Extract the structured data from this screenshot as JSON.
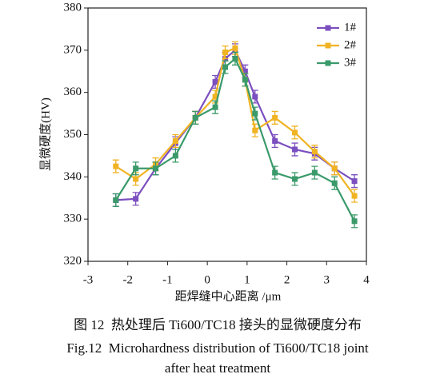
{
  "chart_data": {
    "type": "line",
    "xlabel": "距焊缝中心距离 /μm",
    "ylabel": "显微硬度(HV)",
    "x": [
      -2.3,
      -1.8,
      -1.3,
      -0.8,
      -0.3,
      0.2,
      0.45,
      0.7,
      0.95,
      1.2,
      1.7,
      2.2,
      2.7,
      3.2,
      3.7
    ],
    "series": [
      {
        "name": "1#",
        "color": "#7b4fbf",
        "values": [
          334.5,
          334.8,
          342,
          348,
          354,
          362.5,
          368,
          370,
          365,
          359,
          348.5,
          346.5,
          345.5,
          342,
          339
        ],
        "errors": [
          1.5,
          1.5,
          1.5,
          1.5,
          1.5,
          1.5,
          1.5,
          1.5,
          1.5,
          1.5,
          1.5,
          1.5,
          1.5,
          1.5,
          1.5
        ]
      },
      {
        "name": "2#",
        "color": "#f0b323",
        "values": [
          342.5,
          339.5,
          343,
          348.5,
          354,
          359,
          369.5,
          370.5,
          363,
          351,
          354,
          350.5,
          346,
          342,
          335.5
        ],
        "errors": [
          1.5,
          1.5,
          1.5,
          1.5,
          1.5,
          1.5,
          1.5,
          1.5,
          1.5,
          1.5,
          1.5,
          1.5,
          1.5,
          1.5,
          1.5
        ]
      },
      {
        "name": "3#",
        "color": "#3a9a6a",
        "values": [
          334.5,
          342,
          342,
          345,
          354,
          356.5,
          366,
          368,
          363,
          355,
          341,
          339.5,
          341,
          338.5,
          329.5
        ],
        "errors": [
          1.5,
          1.5,
          1.5,
          1.5,
          1.5,
          1.5,
          1.5,
          1.5,
          1.5,
          1.5,
          1.5,
          1.5,
          1.5,
          1.5,
          1.5
        ]
      }
    ],
    "xlim": [
      -3,
      4
    ],
    "xticks": [
      -3,
      -2,
      -1,
      0,
      1,
      2,
      3,
      4
    ],
    "ylim": [
      320,
      380
    ],
    "yticks": [
      320,
      330,
      340,
      350,
      360,
      370,
      380
    ],
    "legend": "upper right"
  },
  "caption": {
    "cn": "图 12  热处理后 Ti600/TC18 接头的显微硬度分布",
    "en": [
      "Fig.12  Microhardness distribution of Ti600/TC18 joint",
      "after heat treatment"
    ]
  }
}
